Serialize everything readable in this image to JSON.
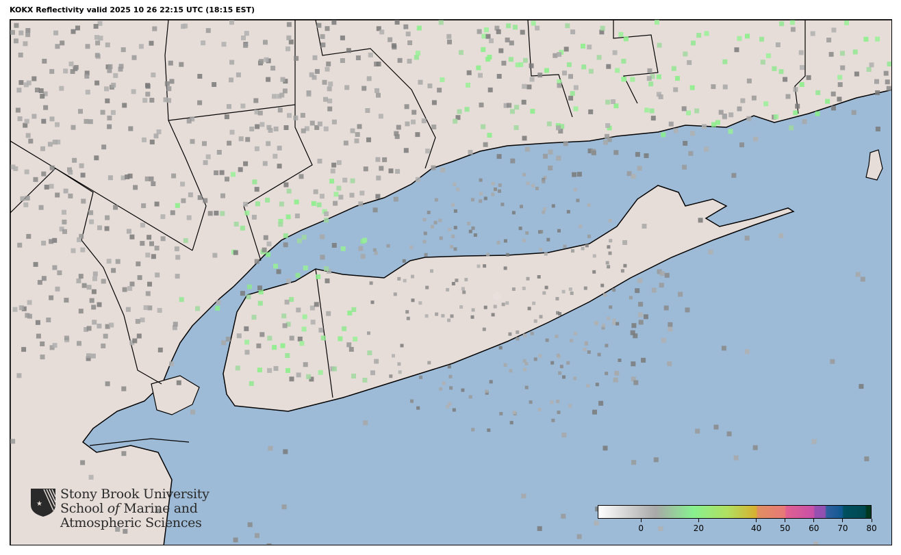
{
  "title": "KOKX Reflectivity valid 2025 10 26 22:15 UTC (18:15 EST)",
  "map": {
    "radar_site": "KOKX",
    "colors": {
      "ocean": "#9dbad6",
      "land": "#e6dcd8",
      "border": "#000000"
    }
  },
  "logo": {
    "line1": "Stony Brook University",
    "line2a": "School ",
    "line2b": "of",
    "line2c": " Marine and",
    "line3": "Atmospheric Sciences"
  },
  "colorbar": {
    "range": [
      -15,
      80
    ],
    "ticks": [
      {
        "value": 0,
        "label": "0"
      },
      {
        "value": 20,
        "label": "20"
      },
      {
        "value": 40,
        "label": "40"
      },
      {
        "value": 50,
        "label": "50"
      },
      {
        "value": 60,
        "label": "60"
      },
      {
        "value": 70,
        "label": "70"
      },
      {
        "value": 80,
        "label": "80"
      }
    ],
    "stops": [
      {
        "value": -15,
        "color": "#ffffff"
      },
      {
        "value": 5,
        "color": "#a8a8a8"
      },
      {
        "value": 18,
        "color": "#88f090"
      },
      {
        "value": 30,
        "color": "#b0e060"
      },
      {
        "value": 40,
        "color": "#d8b030"
      },
      {
        "value": 40.5,
        "color": "#e09060"
      },
      {
        "value": 50,
        "color": "#e87878"
      },
      {
        "value": 50.5,
        "color": "#e06090"
      },
      {
        "value": 60,
        "color": "#c850a8"
      },
      {
        "value": 60.5,
        "color": "#9850b0"
      },
      {
        "value": 64,
        "color": "#9050b0"
      },
      {
        "value": 64.5,
        "color": "#3060a0"
      },
      {
        "value": 70,
        "color": "#105890"
      },
      {
        "value": 70.5,
        "color": "#005060"
      },
      {
        "value": 78,
        "color": "#004850"
      },
      {
        "value": 78.5,
        "color": "#003820"
      },
      {
        "value": 80,
        "color": "#003820"
      }
    ]
  }
}
